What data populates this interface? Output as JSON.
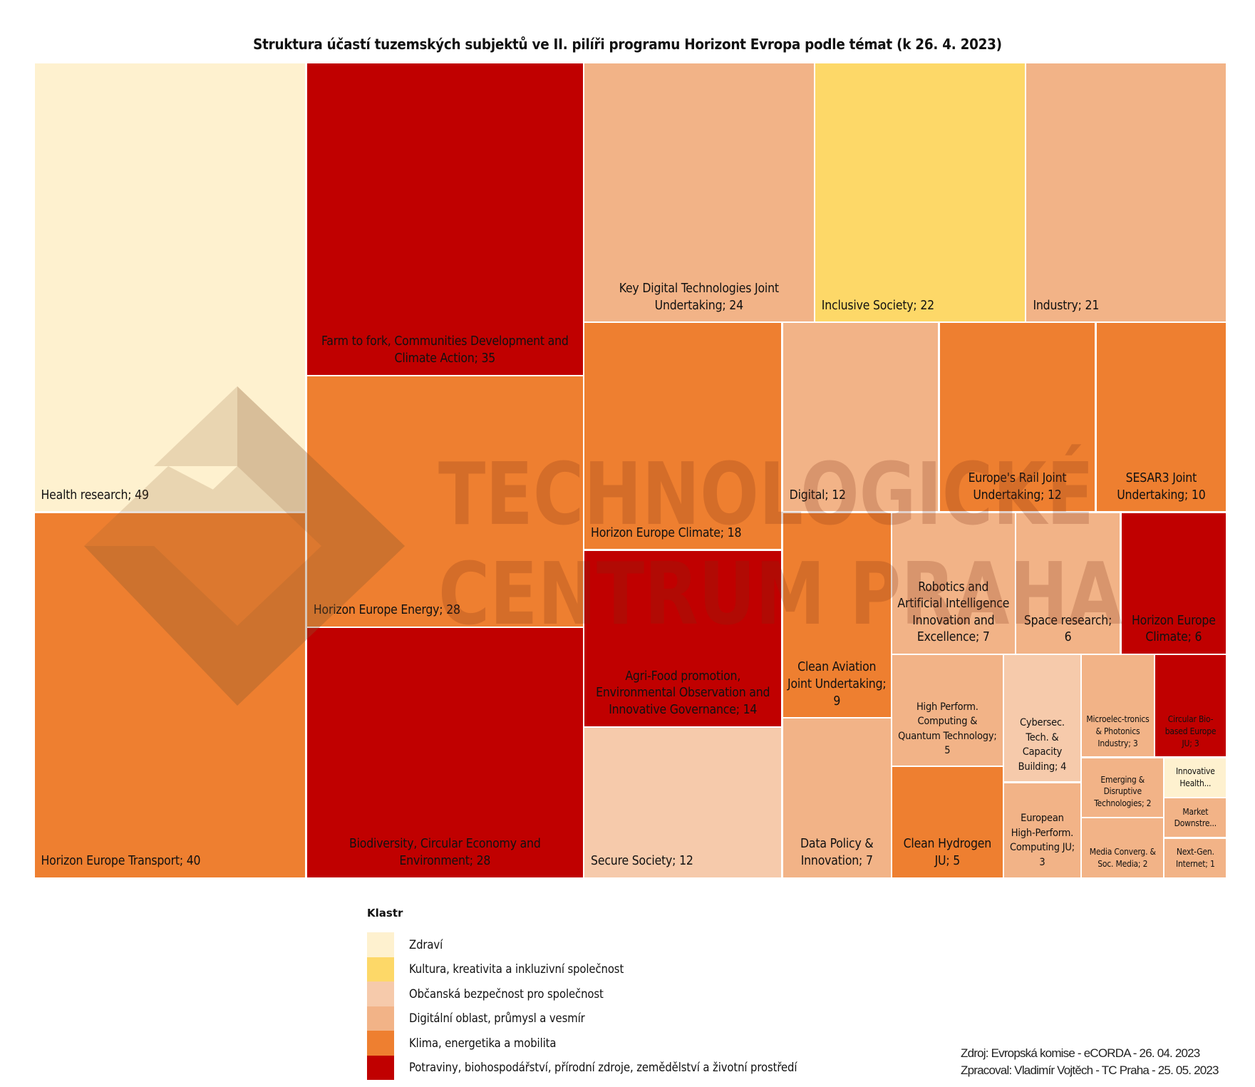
{
  "chart_data": {
    "type": "treemap",
    "title": "Struktura účastí tuzemských subjektů ve II. pilíři programu Horizont Evropa podle témat (k 26. 4. 2023)",
    "legend": {
      "title": "Klastr",
      "placement": "bottom-center",
      "entries": [
        {
          "key": "zdravi",
          "label": "Zdraví",
          "color": "#FEF1CF"
        },
        {
          "key": "kultura",
          "label": "Kultura, kreativita a inkluzivní společnost",
          "color": "#FDD868"
        },
        {
          "key": "bezpecnost",
          "label": "Občanská bezpečnost pro společnost",
          "color": "#F6CAAB"
        },
        {
          "key": "digital",
          "label": "Digitální oblast, průmysl a vesmír",
          "color": "#F2B387"
        },
        {
          "key": "klima",
          "label": "Klima, energetika a mobilita",
          "color": "#EE7F30"
        },
        {
          "key": "potraviny",
          "label": "Potraviny, biohospodářství, přírodní zdroje, zemědělství a životní prostředí",
          "color": "#C00000"
        }
      ]
    },
    "items": [
      {
        "name": "Health research",
        "value": 49,
        "cluster": "zdravi",
        "label": "Health research; 49"
      },
      {
        "name": "Horizon Europe Transport",
        "value": 40,
        "cluster": "klima",
        "label": "Horizon Europe Transport; 40"
      },
      {
        "name": "Farm to fork, Communities Development and Climate Action",
        "value": 35,
        "cluster": "potraviny",
        "label": "Farm to fork, Communities Development and Climate Action; 35"
      },
      {
        "name": "Horizon Europe Energy",
        "value": 28,
        "cluster": "klima",
        "label": "Horizon Europe Energy; 28"
      },
      {
        "name": "Biodiversity, Circular Economy and Environment",
        "value": 28,
        "cluster": "potraviny",
        "label": "Biodiversity, Circular Economy and Environment; 28"
      },
      {
        "name": "Key Digital Technologies Joint Undertaking",
        "value": 24,
        "cluster": "digital",
        "label": "Key Digital Technologies Joint Undertaking; 24"
      },
      {
        "name": "Inclusive Society",
        "value": 22,
        "cluster": "kultura",
        "label": "Inclusive Society; 22"
      },
      {
        "name": "Industry",
        "value": 21,
        "cluster": "digital",
        "label": "Industry; 21"
      },
      {
        "name": "Horizon Europe Climate",
        "value": 18,
        "cluster": "klima",
        "label": "Horizon Europe Climate; 18"
      },
      {
        "name": "Digital",
        "value": 12,
        "cluster": "digital",
        "label": "Digital; 12"
      },
      {
        "name": "Europe's Rail Joint Undertaking",
        "value": 12,
        "cluster": "klima",
        "label": "Europe's Rail Joint Undertaking; 12"
      },
      {
        "name": "SESAR3 Joint Undertaking",
        "value": 10,
        "cluster": "klima",
        "label": "SESAR3 Joint Undertaking; 10"
      },
      {
        "name": "Agri-Food promotion, Environmental Observation and Innovative Governance",
        "value": 14,
        "cluster": "potraviny",
        "label": "Agri-Food promotion, Environmental Observation and Innovative Governance; 14"
      },
      {
        "name": "Secure Society",
        "value": 12,
        "cluster": "bezpecnost",
        "label": "Secure Society; 12"
      },
      {
        "name": "Clean Aviation Joint Undertaking",
        "value": 9,
        "cluster": "klima",
        "label": "Clean Aviation Joint Undertaking; 9"
      },
      {
        "name": "Data Policy & Innovation",
        "value": 7,
        "cluster": "digital",
        "label": "Data Policy & Innovation; 7"
      },
      {
        "name": "Robotics and Artificial Intelligence Innovation and Excellence",
        "value": 7,
        "cluster": "digital",
        "label": "Robotics and Artificial Intelligence Innovation and Excellence; 7"
      },
      {
        "name": "Space research",
        "value": 6,
        "cluster": "digital",
        "label": "Space research; 6"
      },
      {
        "name": "Horizon Europe Climate",
        "value": 6,
        "cluster": "potraviny",
        "label": "Horizon Europe Climate; 6"
      },
      {
        "name": "High Perform. Computing & Quantum Technology",
        "value": 5,
        "cluster": "digital",
        "label": "High Perform. Computing & Quantum Technology; 5"
      },
      {
        "name": "Clean Hydrogen JU",
        "value": 5,
        "cluster": "klima",
        "label": "Clean Hydrogen JU; 5"
      },
      {
        "name": "Cybersec. Tech. & Capacity Building",
        "value": 4,
        "cluster": "bezpecnost",
        "label": "Cybersec. Tech. & Capacity Building; 4"
      },
      {
        "name": "European High-Perform. Computing JU",
        "value": 3,
        "cluster": "digital",
        "label": "European High-Perform. Computing JU; 3"
      },
      {
        "name": "Microelectronics & Photonics Industry",
        "value": 3,
        "cluster": "digital",
        "label": "Microelec-tronics & Photonics Industry; 3"
      },
      {
        "name": "Circular Bio-based Europe JU",
        "value": 3,
        "cluster": "potraviny",
        "label": "Circular Bio-based Europe JU; 3"
      },
      {
        "name": "Emerging & Disruptive Technologies",
        "value": 2,
        "cluster": "digital",
        "label": "Emerging & Disruptive Technologies; 2"
      },
      {
        "name": "Media Converg. & Soc. Media",
        "value": 2,
        "cluster": "digital",
        "label": "Media Converg. & Soc. Media; 2"
      },
      {
        "name": "Innovative Health...",
        "value": null,
        "cluster": "zdravi",
        "label": "Innovative Health..."
      },
      {
        "name": "Market Downstre...",
        "value": null,
        "cluster": "digital",
        "label": "Market Downstre..."
      },
      {
        "name": "Next-Gen. Internet",
        "value": 1,
        "cluster": "digital",
        "label": "Next-Gen. Internet; 1"
      }
    ],
    "watermark": [
      "TECHNOLOGICKÉ",
      "CENTRUM PRAHA"
    ]
  },
  "source": {
    "line1": "Zdroj: Evropská komise - eCORDA - 26. 04. 2023",
    "line2": "Zpracoval: Vladimír Vojtěch - TC Praha - 25. 05. 2023"
  }
}
